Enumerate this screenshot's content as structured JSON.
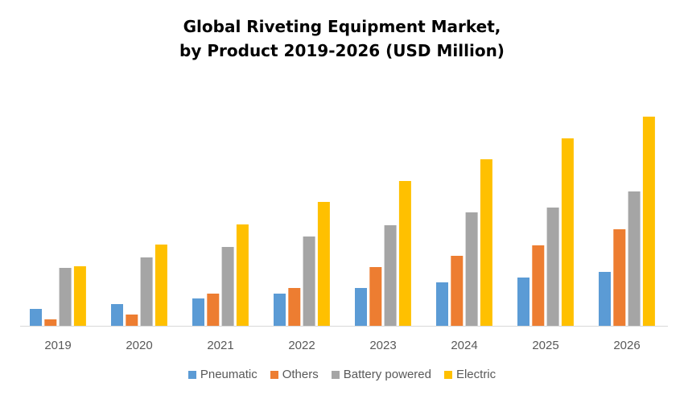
{
  "chart_data": {
    "type": "bar",
    "title_lines": [
      "Global Riveting Equipment Market,",
      "by Product 2019-2026 (USD Million)"
    ],
    "xlabel": "",
    "ylabel": "",
    "categories": [
      "2019",
      "2020",
      "2021",
      "2022",
      "2023",
      "2024",
      "2025",
      "2026"
    ],
    "series": [
      {
        "name": "Pneumatic",
        "color": "#5B9BD5",
        "values": [
          21,
          27,
          34,
          40,
          47,
          54,
          60,
          67
        ]
      },
      {
        "name": "Others",
        "color": "#ED7D31",
        "values": [
          8,
          14,
          40,
          47,
          73,
          87,
          100,
          120
        ]
      },
      {
        "name": "Battery powered",
        "color": "#A5A5A5",
        "values": [
          72,
          85,
          98,
          111,
          125,
          141,
          147,
          167
        ]
      },
      {
        "name": "Electric",
        "color": "#FFC000",
        "values": [
          74,
          101,
          126,
          154,
          180,
          207,
          233,
          260
        ]
      }
    ],
    "ylim": [
      0,
      260
    ],
    "y_axis_shown": false,
    "grid": false,
    "legend": "bottom"
  }
}
